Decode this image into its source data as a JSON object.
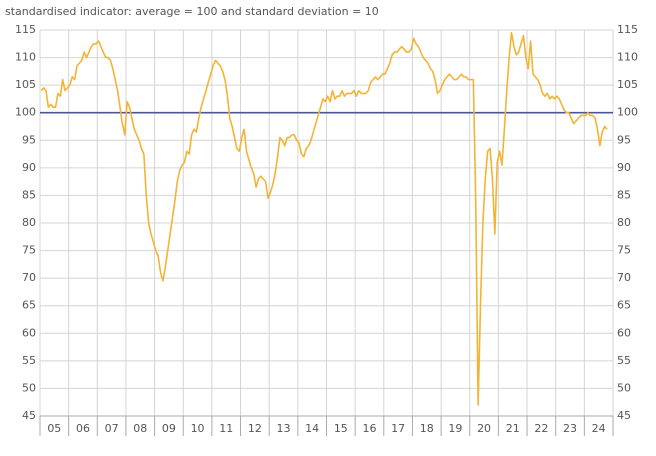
{
  "chart_data": {
    "type": "line",
    "subtitle": "standardised indicator: average = 100 and standard deviation = 10",
    "categories": [
      null,
      null,
      null,
      null,
      null,
      null,
      "05",
      null,
      null,
      null,
      null,
      null,
      null,
      null,
      null,
      null,
      null,
      null,
      "06",
      null,
      null,
      null,
      null,
      null,
      null,
      null,
      null,
      null,
      null,
      null,
      "07",
      null,
      null,
      null,
      null,
      null,
      null,
      null,
      null,
      null,
      null,
      null,
      "08",
      null,
      null,
      null,
      null,
      null,
      null,
      null,
      null,
      null,
      null,
      null,
      "09",
      null,
      null,
      null,
      null,
      null,
      null,
      null,
      null,
      null,
      null,
      null,
      "10",
      null,
      null,
      null,
      null,
      null,
      null,
      null,
      null,
      null,
      null,
      null,
      "11",
      null,
      null,
      null,
      null,
      null,
      null,
      null,
      null,
      null,
      null,
      null,
      "12",
      null,
      null,
      null,
      null,
      null,
      null,
      null,
      null,
      null,
      null,
      null,
      "13",
      null,
      null,
      null,
      null,
      null,
      null,
      null,
      null,
      null,
      null,
      null,
      "14",
      null,
      null,
      null,
      null,
      null,
      null,
      null,
      null,
      null,
      null,
      null,
      "15",
      null,
      null,
      null,
      null,
      null,
      null,
      null,
      null,
      null,
      null,
      null,
      "16",
      null,
      null,
      null,
      null,
      null,
      null,
      null,
      null,
      null,
      null,
      null,
      "17",
      null,
      null,
      null,
      null,
      null,
      null,
      null,
      null,
      null,
      null,
      null,
      "18",
      null,
      null,
      null,
      null,
      null,
      null,
      null,
      null,
      null,
      null,
      null,
      "19",
      null,
      null,
      null,
      null,
      null,
      null,
      null,
      null,
      null,
      null,
      null,
      "20",
      null,
      null,
      null,
      null,
      null,
      null,
      null,
      null,
      null,
      null,
      null,
      "21",
      null,
      null,
      null,
      null,
      null,
      null,
      null,
      null,
      null,
      null,
      null,
      "22",
      null,
      null,
      null,
      null,
      null,
      null,
      null,
      null,
      null,
      null,
      null,
      "23",
      null,
      null,
      null,
      null,
      null,
      null,
      null,
      null,
      null,
      null,
      null,
      "24",
      null,
      null,
      null
    ],
    "values": [
      104,
      104.5,
      104,
      101,
      101.5,
      101,
      101,
      103.5,
      103,
      106,
      104,
      104.5,
      105,
      106.5,
      106,
      108.5,
      109,
      109.5,
      111,
      110,
      111,
      112,
      112.5,
      112.5,
      113,
      112,
      111,
      110,
      110,
      109.5,
      108,
      106,
      104,
      101,
      98,
      96,
      102,
      101,
      99,
      97,
      96,
      95,
      93.5,
      92.5,
      85,
      80,
      78,
      76.5,
      75,
      74,
      71,
      69.5,
      72,
      75,
      78,
      81,
      84,
      87.5,
      89.5,
      90.5,
      91,
      93,
      92.5,
      96,
      97,
      96.5,
      99,
      101,
      102.5,
      104,
      105.5,
      107,
      108.5,
      109.5,
      109,
      108.5,
      107.5,
      106,
      103,
      99,
      97.5,
      95.5,
      93.5,
      93,
      95.5,
      97,
      93,
      91.5,
      90,
      89,
      86.5,
      88,
      88.5,
      88,
      87.5,
      84.5,
      85.5,
      87,
      89,
      92,
      95.5,
      95,
      94,
      95.5,
      95.5,
      96,
      96,
      95,
      94.5,
      92.5,
      92,
      93.5,
      94,
      95,
      96.5,
      98,
      99.5,
      101,
      102.5,
      102,
      103,
      102,
      104,
      102.5,
      103,
      103,
      104,
      103,
      103.5,
      103.5,
      103.5,
      104,
      103,
      104,
      103.5,
      103.5,
      103.5,
      104,
      105.5,
      106,
      106.5,
      106,
      106.5,
      107,
      107,
      108,
      109,
      110.5,
      111,
      111,
      111.5,
      112,
      111.5,
      111,
      111,
      111.5,
      113.5,
      112.5,
      112,
      111,
      110,
      109.5,
      109,
      108,
      107.5,
      106,
      103.5,
      104,
      105,
      106,
      106.5,
      107,
      106.5,
      106,
      106,
      106.5,
      107,
      106.5,
      106.5,
      106,
      106,
      106,
      84,
      47,
      65,
      80,
      88,
      93,
      93.5,
      88,
      78,
      91,
      93,
      90.5,
      97,
      104,
      110,
      114.5,
      112,
      110.5,
      111,
      112.5,
      114,
      110,
      108,
      113,
      107,
      106.5,
      106,
      105,
      103.5,
      103,
      103.5,
      102.5,
      103,
      102.5,
      103,
      102.5,
      101.5,
      100.5,
      100,
      100,
      99,
      98,
      98.5,
      99,
      99.5,
      99.5,
      99.5,
      100,
      99.5,
      99.5,
      99,
      97,
      94,
      96.5,
      97.5,
      97
    ],
    "color": "#f5b335",
    "reference_line": {
      "value": 100,
      "color": "#4a5496"
    },
    "ylim": [
      45,
      115
    ],
    "yticks": [
      45,
      50,
      55,
      60,
      65,
      70,
      75,
      80,
      85,
      90,
      95,
      100,
      105,
      110,
      115
    ],
    "grid": true
  }
}
